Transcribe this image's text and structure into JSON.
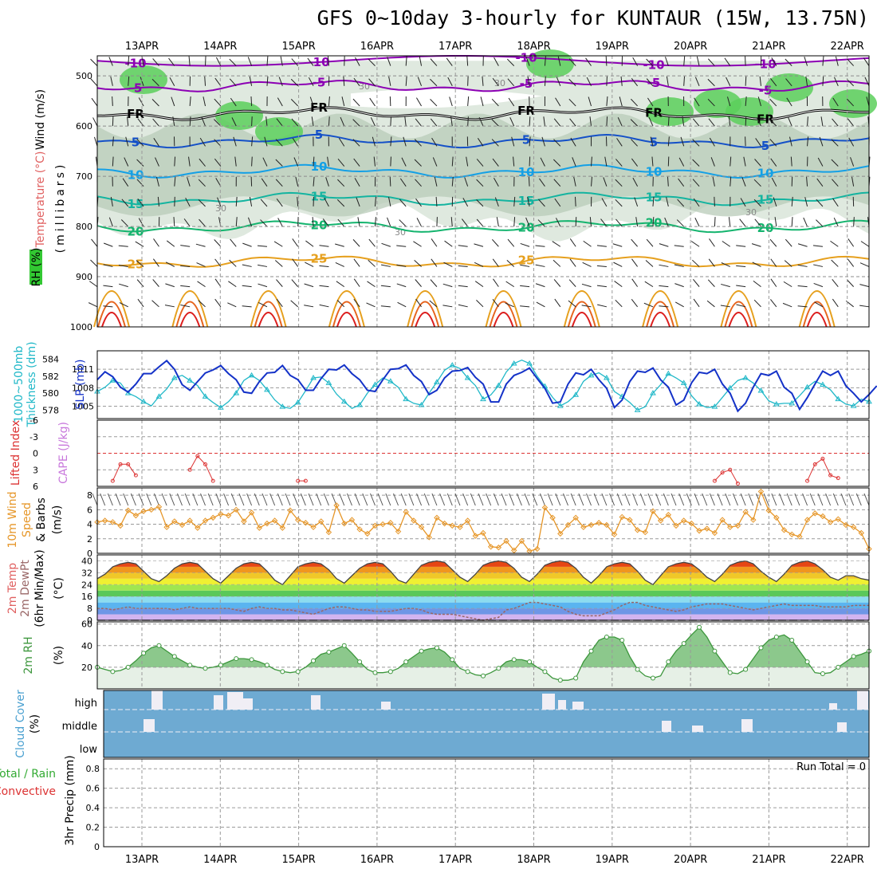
{
  "header": {
    "title": "GFS 0~10day 3-hourly for KUNTAUR (15W, 13.75N)"
  },
  "colors": {
    "rh_fill": "#b8cbb8",
    "rh_green": "#5ccf5c",
    "temp_neg": "#8c00b4",
    "temp_fr": "#000000",
    "temp_5": "#1450c8",
    "temp_10": "#14a0e6",
    "temp_15": "#14b4a0",
    "temp_20": "#14b46e",
    "temp_25": "#e6a01e",
    "temp_30": "#e6641e",
    "temp_35": "#dc1e1e",
    "slp": "#1432c8",
    "thickness": "#20b8c8",
    "lifted": "#dc3232",
    "wind": "#e69628",
    "rh2m": "#3c963c",
    "cloud": "#6eaad2",
    "cloud_white": "#f0eef5"
  },
  "chart_data": [
    {
      "panel": "upper-air",
      "type": "heatmap",
      "ylabel_parts": [
        "Wind (m/s)",
        "Temperature (°C)",
        "RH (%)"
      ],
      "ylabel_unit": "(millibars)",
      "y_ticks": [
        "500",
        "600",
        "700",
        "800",
        "900",
        "1000"
      ],
      "ylim": [
        460,
        1000
      ],
      "contours": [
        {
          "label": "-10",
          "level_mb": 470,
          "color": "#8c00b4"
        },
        {
          "label": "-5",
          "level_mb": 520,
          "color": "#8c00b4"
        },
        {
          "label": "FR",
          "level_mb": 575,
          "color": "#000000"
        },
        {
          "label": "5",
          "level_mb": 630,
          "color": "#1450c8"
        },
        {
          "label": "10",
          "level_mb": 690,
          "color": "#14a0e6"
        },
        {
          "label": "15",
          "level_mb": 745,
          "color": "#14b4a0"
        },
        {
          "label": "20",
          "level_mb": 800,
          "color": "#14b46e"
        },
        {
          "label": "25",
          "level_mb": 870,
          "color": "#e6a01e"
        }
      ],
      "rh_labels": [
        "30",
        "30",
        "30",
        "30",
        "30"
      ]
    },
    {
      "panel": "slp-thickness",
      "type": "line",
      "ylabel_parts": [
        "1000~500mb",
        "Thickness (dm)",
        "SLP (mb)"
      ],
      "left_ticks": [
        "584",
        "582",
        "580",
        "578"
      ],
      "right_ticks": [
        "1011",
        "1008",
        "1005"
      ],
      "series": [
        {
          "name": "SLP",
          "values": [
            1009.3,
            1010.6,
            1009.8,
            1008.1,
            1007.3,
            1008.6,
            1010.3,
            1010.3,
            1011.4,
            1012.4,
            1011.0,
            1008.5,
            1007.6,
            1009.0,
            1010.4,
            1010.9,
            1011.6,
            1010.3,
            1009.3,
            1007.3,
            1007.1,
            1009.0,
            1010.4,
            1010.5,
            1011.6,
            1010.0,
            1009.3,
            1007.6,
            1007.6,
            1009.5,
            1011.0,
            1010.9,
            1011.7,
            1010.3,
            1009.3,
            1007.6,
            1007.4,
            1009.3,
            1011.0,
            1011.1,
            1011.7,
            1010.0,
            1009.0,
            1006.9,
            1007.6,
            1009.6,
            1010.7,
            1010.8,
            1011.3,
            1009.7,
            1008.6,
            1005.7,
            1005.7,
            1008.6,
            1010.0,
            1010.5,
            1011.2,
            1009.5,
            1007.9,
            1005.5,
            1005.7,
            1008.6,
            1010.4,
            1010.1,
            1011.0,
            1009.3,
            1007.9,
            1004.8,
            1006.0,
            1009.0,
            1010.7,
            1010.5,
            1011.2,
            1009.3,
            1008.1,
            1005.2,
            1006.0,
            1008.8,
            1010.5,
            1010.3,
            1011.0,
            1008.6,
            1007.1,
            1004.2,
            1005.5,
            1008.1,
            1010.3,
            1010.0,
            1010.7,
            1008.1,
            1007.1,
            1004.5,
            1006.4,
            1008.6,
            1010.7,
            1010.0,
            1010.7,
            1008.3,
            1007.1,
            1005.7,
            1006.9,
            1008.3
          ]
        },
        {
          "name": "Thickness",
          "values": [
            580.2,
            580.7,
            581.5,
            581.2,
            580.0,
            579.6,
            579.0,
            578.5,
            579.6,
            580.5,
            581.8,
            582.1,
            581.5,
            580.9,
            579.6,
            578.9,
            578.3,
            579.0,
            580.0,
            581.5,
            582.1,
            581.5,
            580.4,
            579.2,
            578.4,
            578.2,
            578.9,
            580.3,
            581.8,
            581.9,
            581.2,
            579.9,
            579.0,
            578.2,
            578.6,
            580.0,
            581.0,
            581.8,
            581.4,
            580.7,
            579.3,
            578.8,
            578.6,
            580.0,
            581.3,
            582.7,
            583.3,
            582.9,
            581.8,
            580.9,
            579.3,
            579.8,
            580.9,
            582.5,
            583.5,
            583.9,
            583.5,
            582.0,
            580.8,
            579.5,
            578.5,
            579.0,
            579.8,
            581.4,
            582.1,
            582.4,
            581.8,
            580.2,
            579.6,
            578.9,
            578.0,
            578.4,
            580.0,
            581.0,
            582.3,
            581.8,
            581.2,
            579.7,
            578.7,
            578.3,
            578.4,
            579.5,
            580.6,
            581.5,
            581.8,
            581.2,
            580.3,
            579.1,
            578.7,
            578.8,
            578.8,
            579.7,
            580.7,
            581.4,
            581.0,
            580.4,
            579.3,
            578.7,
            578.5,
            579.3,
            579.0
          ]
        }
      ]
    },
    {
      "panel": "lifted-cape",
      "type": "line",
      "ylabel_parts": [
        "Lifted Index",
        "CAPE (J/kg)"
      ],
      "y_ticks": [
        "-6",
        "-3",
        "0",
        "3",
        "6"
      ],
      "series": [
        {
          "name": "Lifted Index",
          "values": [
            null,
            null,
            5.0,
            2.0,
            2.0,
            4.0,
            null,
            null,
            null,
            null,
            null,
            null,
            3.0,
            0.5,
            2.0,
            5.0,
            null,
            null,
            null,
            null,
            null,
            null,
            null,
            null,
            null,
            null,
            5.0,
            5.0,
            null,
            null,
            null,
            null,
            null,
            null,
            null,
            null,
            null,
            null,
            null,
            null,
            null,
            null,
            null,
            null,
            null,
            null,
            null,
            null,
            null,
            null,
            null,
            null,
            null,
            null,
            null,
            null,
            null,
            null,
            null,
            null,
            null,
            null,
            null,
            null,
            null,
            null,
            null,
            null,
            null,
            null,
            null,
            null,
            null,
            null,
            null,
            null,
            null,
            null,
            null,
            null,
            null,
            null,
            null,
            null,
            null,
            null,
            null,
            null,
            null,
            null,
            null,
            null,
            null,
            null,
            null,
            null,
            null,
            null,
            null,
            null,
            null,
            null
          ]
        },
        {
          "name": "Lifted Index (late)",
          "values": [
            null,
            null,
            null,
            null,
            null,
            null,
            null,
            null,
            null,
            null,
            null,
            null,
            null,
            null,
            null,
            null,
            null,
            null,
            null,
            null,
            null,
            null,
            null,
            null,
            null,
            null,
            null,
            null,
            null,
            null,
            null,
            null,
            null,
            null,
            null,
            null,
            null,
            null,
            null,
            null,
            null,
            null,
            null,
            null,
            null,
            null,
            null,
            null,
            null,
            null,
            null,
            null,
            null,
            null,
            null,
            null,
            null,
            null,
            null,
            null,
            null,
            null,
            null,
            null,
            null,
            null,
            null,
            null,
            null,
            null,
            null,
            null,
            null,
            null,
            null,
            null,
            null,
            null,
            null,
            null,
            5.0,
            3.5,
            3.0,
            5.5,
            null,
            null,
            null,
            null,
            null,
            null,
            null,
            null,
            5.0,
            2.0,
            1.0,
            4.0,
            4.5,
            null,
            null,
            null,
            null
          ]
        }
      ]
    },
    {
      "panel": "wind-10m",
      "type": "line",
      "ylabel_parts": [
        "10m Wind",
        "Speed",
        "& Barbs",
        "(m/s)"
      ],
      "y_ticks": [
        "0",
        "2",
        "4",
        "6",
        "8"
      ],
      "series": [
        {
          "name": "10m Wind Speed",
          "values": [
            4.3,
            4.5,
            4.3,
            3.8,
            5.9,
            5.2,
            5.8,
            6.0,
            6.4,
            3.6,
            4.4,
            3.9,
            4.5,
            3.5,
            4.5,
            4.9,
            5.4,
            5.2,
            6.0,
            4.4,
            5.6,
            3.5,
            4.1,
            4.5,
            3.5,
            5.9,
            4.6,
            4.2,
            3.6,
            4.4,
            2.9,
            6.6,
            4.1,
            4.6,
            3.3,
            2.7,
            3.8,
            4.0,
            4.2,
            3.0,
            5.7,
            4.5,
            3.6,
            2.2,
            4.9,
            4.1,
            3.8,
            3.6,
            4.5,
            2.4,
            2.8,
            0.9,
            0.8,
            1.7,
            0.4,
            1.7,
            0.3,
            0.6,
            6.3,
            4.9,
            2.7,
            3.9,
            4.9,
            3.6,
            3.9,
            4.2,
            3.9,
            2.6,
            5.0,
            4.6,
            3.2,
            2.9,
            5.8,
            4.5,
            5.3,
            3.8,
            4.5,
            4.1,
            3.1,
            3.4,
            2.8,
            4.6,
            3.6,
            3.8,
            5.7,
            4.6,
            8.5,
            5.9,
            4.9,
            3.2,
            2.6,
            2.3,
            4.6,
            5.5,
            5.1,
            4.3,
            4.7,
            3.9,
            3.6,
            2.8,
            0.6
          ]
        }
      ]
    },
    {
      "panel": "temp-dewpoint",
      "type": "area",
      "ylabel_parts": [
        "2m Temp",
        "2m DewPt",
        "(6hr Min/Max)",
        "(°C)"
      ],
      "y_ticks": [
        "0",
        "8",
        "16",
        "24",
        "32",
        "40"
      ],
      "series": [
        {
          "name": "2m Temp",
          "values": [
            28,
            31,
            36,
            38,
            39,
            38,
            33,
            28,
            26,
            30,
            35,
            38,
            39,
            38,
            33,
            28,
            25,
            30,
            35,
            38,
            39,
            38,
            33,
            27,
            24,
            30,
            36,
            38,
            39,
            38,
            34,
            28,
            25,
            30,
            35,
            38,
            39,
            38,
            33,
            27,
            25,
            31,
            37,
            39,
            40,
            39,
            34,
            29,
            26,
            31,
            37,
            39,
            40,
            39,
            35,
            29,
            26,
            31,
            37,
            39,
            40,
            39,
            35,
            29,
            25,
            30,
            36,
            38,
            39,
            38,
            33,
            27,
            24,
            30,
            36,
            38,
            39,
            38,
            34,
            29,
            26,
            31,
            37,
            39,
            40,
            38,
            33,
            29,
            26,
            31,
            37,
            39,
            40,
            38,
            34,
            29,
            27,
            30,
            30,
            28,
            27
          ]
        },
        {
          "name": "2m DewPt",
          "values": [
            8,
            8,
            7,
            8,
            9,
            8,
            8,
            8,
            8,
            8,
            7,
            8,
            9,
            8,
            8,
            8,
            8,
            8,
            7,
            6,
            8,
            9,
            8,
            8,
            7,
            7,
            6,
            5,
            4,
            6,
            8,
            9,
            9,
            8,
            7,
            7,
            6,
            6,
            6,
            7,
            8,
            8,
            7,
            5,
            4,
            4,
            4,
            3,
            2,
            1,
            0,
            1,
            2,
            7,
            8,
            10,
            12,
            12,
            11,
            10,
            9,
            6,
            4,
            3,
            3,
            3,
            5,
            7,
            10,
            12,
            12,
            10,
            9,
            8,
            7,
            6,
            7,
            9,
            10,
            11,
            11,
            11,
            10,
            9,
            8,
            7,
            8,
            9,
            10,
            11,
            10,
            10,
            10,
            10,
            9,
            9,
            9,
            9,
            10,
            10,
            10
          ]
        }
      ]
    },
    {
      "panel": "rh-2m",
      "type": "area",
      "ylabel_parts": [
        "2m RH",
        "(%)"
      ],
      "y_ticks": [
        "20",
        "40",
        "60"
      ],
      "series": [
        {
          "name": "2m RH",
          "values": [
            20,
            18,
            16,
            17,
            20,
            26,
            33,
            38,
            40,
            35,
            30,
            26,
            22,
            20,
            19,
            20,
            22,
            25,
            28,
            28,
            27,
            25,
            22,
            18,
            16,
            15,
            16,
            20,
            26,
            32,
            34,
            37,
            40,
            33,
            25,
            18,
            15,
            15,
            16,
            19,
            25,
            30,
            35,
            37,
            38,
            34,
            27,
            19,
            16,
            13,
            12,
            15,
            19,
            25,
            27,
            27,
            25,
            20,
            16,
            10,
            8,
            8,
            10,
            25,
            35,
            45,
            48,
            48,
            45,
            30,
            18,
            12,
            10,
            12,
            25,
            35,
            42,
            50,
            57,
            48,
            35,
            25,
            15,
            14,
            18,
            28,
            38,
            45,
            48,
            50,
            45,
            35,
            25,
            15,
            14,
            15,
            20,
            25,
            30,
            32,
            35
          ]
        }
      ]
    },
    {
      "panel": "cloud-cover",
      "type": "bar",
      "ylabel_parts": [
        "Cloud Cover",
        "(%)"
      ],
      "levels": [
        "high",
        "middle",
        "low"
      ]
    },
    {
      "panel": "precip-3hr",
      "type": "bar",
      "ylabel_parts": [
        "Total / Rain",
        "Convective",
        "3hr Precip (mm)"
      ],
      "y_ticks": [
        "0",
        "0.2",
        "0.4",
        "0.6",
        "0.8"
      ],
      "annotation": "Run Total = 0"
    }
  ],
  "time_axis": {
    "dates": [
      "13APR",
      "14APR",
      "15APR",
      "16APR",
      "17APR",
      "18APR",
      "19APR",
      "20APR",
      "21APR",
      "22APR"
    ]
  }
}
